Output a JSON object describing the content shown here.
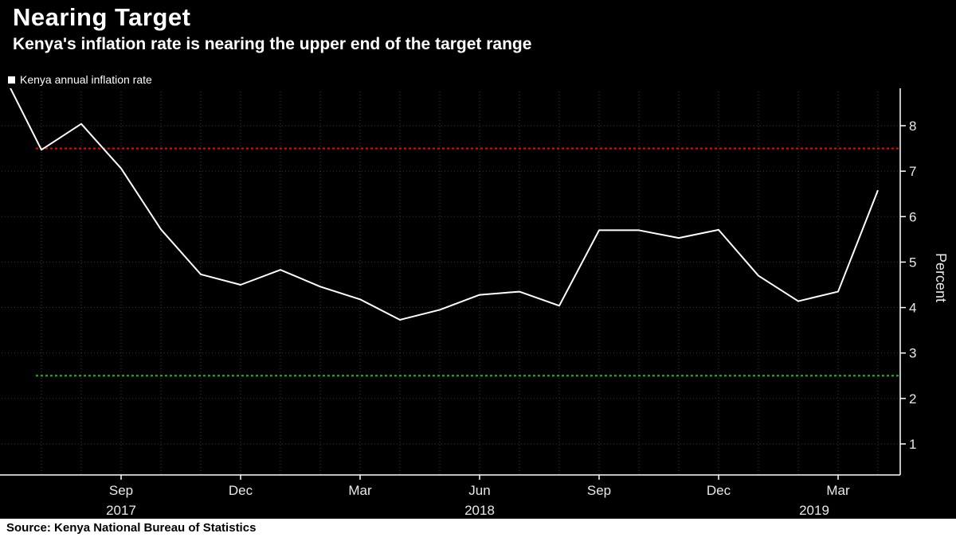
{
  "header": {
    "title": "Nearing Target",
    "subtitle": "Kenya's inflation rate is nearing the upper end of the target range"
  },
  "legend": {
    "label": "Kenya annual inflation rate",
    "marker_color": "#ffffff"
  },
  "source": "Source: Kenya National Bureau of Statistics",
  "colors": {
    "background": "#000000",
    "line": "#ffffff",
    "upper_target": "#ff0000",
    "lower_target": "#00cc00",
    "grid": "#3a3a3a"
  },
  "chart_data": {
    "type": "line",
    "title": "Nearing Target",
    "xlabel": "",
    "ylabel": "Percent",
    "ylim": [
      0.3,
      8.75
    ],
    "yticks": [
      1,
      2,
      3,
      4,
      5,
      6,
      7,
      8
    ],
    "grid": true,
    "legend_position": "top-left",
    "x": [
      "Jun 2017",
      "Jul 2017",
      "Aug 2017",
      "Sep 2017",
      "Oct 2017",
      "Nov 2017",
      "Dec 2017",
      "Jan 2018",
      "Feb 2018",
      "Mar 2018",
      "Apr 2018",
      "May 2018",
      "Jun 2018",
      "Jul 2018",
      "Aug 2018",
      "Sep 2018",
      "Oct 2018",
      "Nov 2018",
      "Dec 2018",
      "Jan 2019",
      "Feb 2019",
      "Mar 2019",
      "Apr 2019"
    ],
    "series": [
      {
        "name": "Kenya annual inflation rate",
        "color": "#ffffff",
        "values": [
          9.21,
          7.47,
          8.04,
          7.06,
          5.72,
          4.73,
          4.5,
          4.83,
          4.46,
          4.18,
          3.73,
          3.95,
          4.28,
          4.35,
          4.04,
          5.7,
          5.7,
          5.53,
          5.71,
          4.7,
          4.14,
          4.35,
          6.58
        ]
      }
    ],
    "reference_lines": [
      {
        "name": "upper-target",
        "value": 7.5,
        "color": "#ff0000",
        "style": "dotted"
      },
      {
        "name": "lower-target",
        "value": 2.5,
        "color": "#00cc00",
        "style": "dotted"
      }
    ],
    "x_ticks": [
      {
        "label": "Sep",
        "idx": 3
      },
      {
        "label": "Dec",
        "idx": 6
      },
      {
        "label": "Mar",
        "idx": 9
      },
      {
        "label": "Jun",
        "idx": 12
      },
      {
        "label": "Sep",
        "idx": 15
      },
      {
        "label": "Dec",
        "idx": 18
      },
      {
        "label": "Mar",
        "idx": 21
      }
    ],
    "year_labels": [
      {
        "label": "2017",
        "idx": 3
      },
      {
        "label": "2018",
        "idx": 12
      },
      {
        "label": "2019",
        "idx": 20.4
      }
    ]
  }
}
